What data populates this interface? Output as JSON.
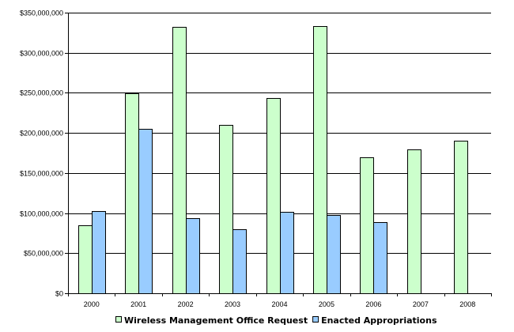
{
  "chart_data": {
    "type": "bar",
    "categories": [
      "2000",
      "2001",
      "2002",
      "2003",
      "2004",
      "2005",
      "2006",
      "2007",
      "2008"
    ],
    "series": [
      {
        "name": "Wireless Management Office Request",
        "color": "#ccffcc",
        "values": [
          85000000,
          249000000,
          332000000,
          210000000,
          244000000,
          333000000,
          170000000,
          179000000,
          190000000
        ]
      },
      {
        "name": "Enacted Appropriations",
        "color": "#99ccff",
        "values": [
          103000000,
          205000000,
          94000000,
          80000000,
          102000000,
          98000000,
          89000000,
          null,
          null
        ]
      }
    ],
    "ylim": [
      0,
      350000000
    ],
    "yticks": [
      0,
      50000000,
      100000000,
      150000000,
      200000000,
      250000000,
      300000000,
      350000000
    ],
    "ytick_labels": [
      "$0",
      "$50,000,000",
      "$100,000,000",
      "$150,000,000",
      "$200,000,000",
      "$250,000,000",
      "$300,000,000",
      "$350,000,000"
    ],
    "grid": true,
    "legend": "bottom"
  }
}
